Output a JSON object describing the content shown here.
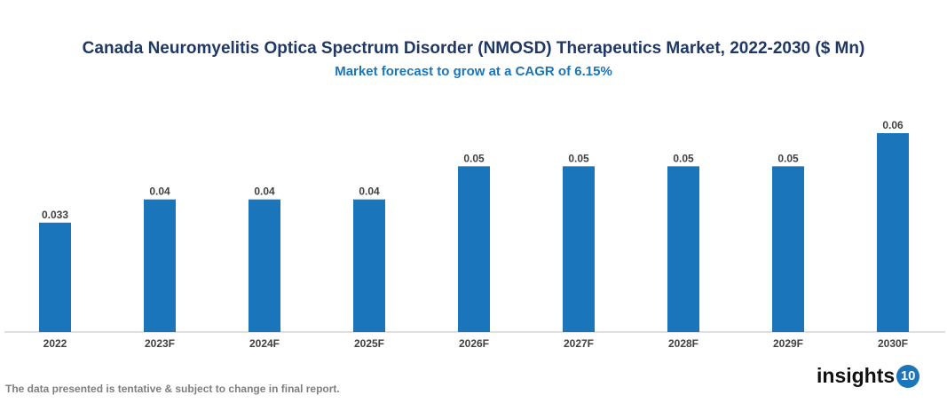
{
  "chart_data": {
    "type": "bar",
    "title": "Canada Neuromyelitis Optica Spectrum Disorder (NMOSD) Therapeutics Market, 2022-2030 ($ Mn)",
    "subtitle": "Market forecast to grow at a CAGR of 6.15%",
    "categories": [
      "2022",
      "2023F",
      "2024F",
      "2025F",
      "2026F",
      "2027F",
      "2028F",
      "2029F",
      "2030F"
    ],
    "values": [
      0.033,
      0.04,
      0.04,
      0.04,
      0.05,
      0.05,
      0.05,
      0.05,
      0.06
    ],
    "data_labels": [
      "0.033",
      "0.04",
      "0.04",
      "0.04",
      "0.05",
      "0.05",
      "0.05",
      "0.05",
      "0.06"
    ],
    "xlabel": "",
    "ylabel": "",
    "ylim": [
      0,
      0.06
    ],
    "grid": false,
    "bar_color": "#1a75bb"
  },
  "footnote": "The data presented is tentative & subject to change in final report.",
  "logo": {
    "text": "insights",
    "badge": "10"
  }
}
